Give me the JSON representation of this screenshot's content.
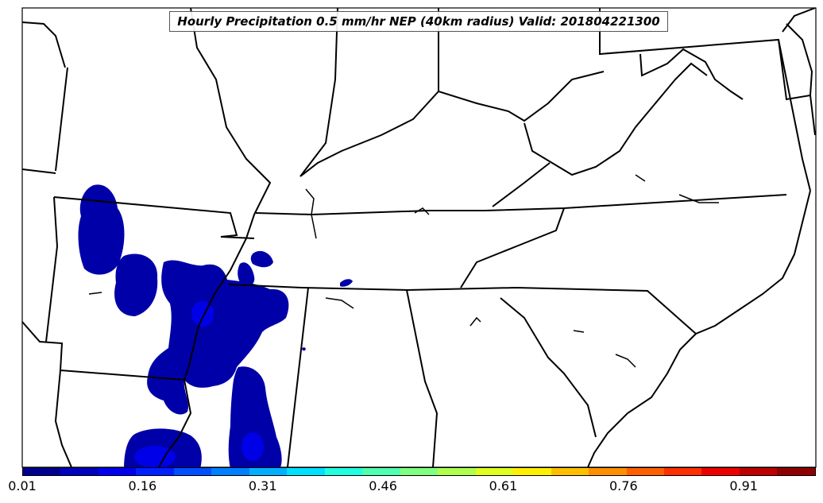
{
  "title": "Hourly Precipitation 0.5 mm/hr NEP (40km radius) Valid: 201804221300",
  "colorbar": {
    "ticks": [
      "0.01",
      "0.16",
      "0.31",
      "0.46",
      "0.61",
      "0.76",
      "0.91"
    ],
    "colors": [
      "#00008f",
      "#0000bf",
      "#0000ef",
      "#0020ff",
      "#0050ff",
      "#0080ff",
      "#00b0ff",
      "#00e0ff",
      "#20ffdf",
      "#50ffaf",
      "#80ff80",
      "#afff50",
      "#dfff20",
      "#ffef00",
      "#ffbf00",
      "#ff8f00",
      "#ff5f00",
      "#ff3000",
      "#ef0000",
      "#bf0000",
      "#8f0000"
    ],
    "range": [
      0.01,
      1.0
    ]
  },
  "precip_color_dark": "#0000a8",
  "precip_color_mid": "#0000e8",
  "border_color": "#000000"
}
